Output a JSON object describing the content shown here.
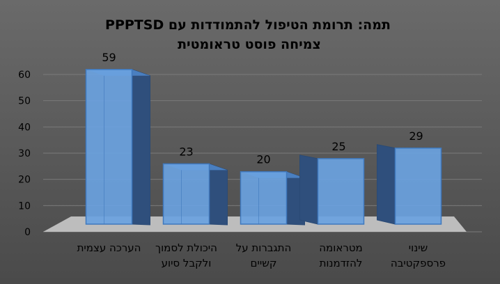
{
  "colors": {
    "background": "#5a5a5a",
    "bar_front": "#6aa2e0",
    "bar_side": "#2f4f7c",
    "bar_top": "#4a7fc0",
    "floor": "#bdbdbd",
    "text": "#000000",
    "grid": "#7a7a7a"
  },
  "chart_data": {
    "type": "bar",
    "title": "תמה: תרומת הטיפול להתמודדות עם PPPTSD",
    "subtitle": "צמיחה פוסט טראומטית",
    "categories": [
      [
        "הערכה עצמית"
      ],
      [
        "היכולת לסמוך",
        "ולקבל סיוע"
      ],
      [
        "התגברות על",
        "קשיים"
      ],
      [
        "מטראומה",
        "להזדמנות"
      ],
      [
        "שינוי",
        "פרספקטיבה"
      ]
    ],
    "values": [
      59,
      23,
      20,
      25,
      29
    ],
    "data_labels": [
      "59",
      "23",
      "20",
      "25",
      "29"
    ],
    "ylim": [
      0,
      60
    ],
    "yticks": [
      "0",
      "10",
      "20",
      "30",
      "40",
      "50",
      "60"
    ],
    "grid": true,
    "legend": "none"
  }
}
